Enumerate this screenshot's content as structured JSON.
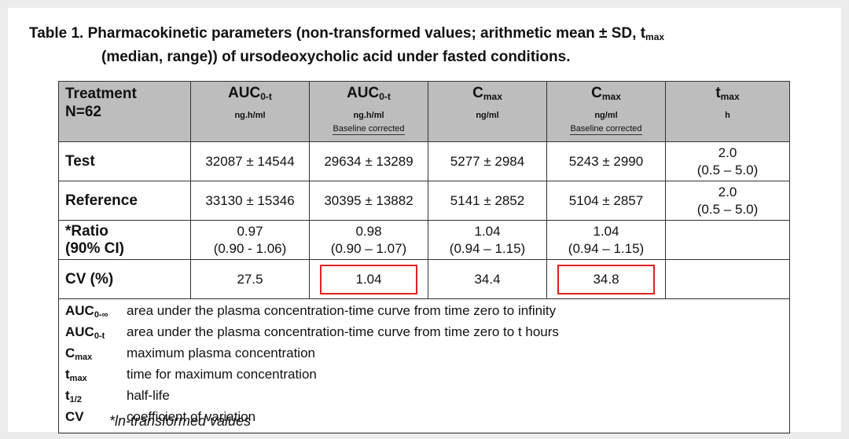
{
  "title": {
    "line1_part1": "Table 1. Pharmacokinetic parameters (non-transformed values; arithmetic mean ± SD, t",
    "line1_sub": "max",
    "line2": "(median, range)) of ursodeoxycholic acid under fasted conditions."
  },
  "header": {
    "treatment_line1": "Treatment",
    "treatment_line2": "N=62",
    "columns": [
      {
        "name": "AUC",
        "sub": "0-t",
        "unit": "ng.h/ml",
        "note": ""
      },
      {
        "name": "AUC",
        "sub": "0-t",
        "unit": "ng.h/ml",
        "note": "Baseline corrected"
      },
      {
        "name": "C",
        "sub": "max",
        "unit": "ng/ml",
        "note": ""
      },
      {
        "name": "C",
        "sub": "max",
        "unit": "ng/ml",
        "note": "Baseline corrected"
      },
      {
        "name": "t",
        "sub": "max",
        "unit": "h",
        "note": ""
      }
    ]
  },
  "rows": {
    "test": {
      "label": "Test",
      "c1": "32087 ± 14544",
      "c2": "29634 ± 13289",
      "c3": "5277 ± 2984",
      "c4": "5243 ± 2990",
      "c5_line1": "2.0",
      "c5_line2": "(0.5 – 5.0)"
    },
    "reference": {
      "label": "Reference",
      "c1": "33130 ± 15346",
      "c2": "30395 ± 13882",
      "c3": "5141 ± 2852",
      "c4": "5104 ± 2857",
      "c5_line1": "2.0",
      "c5_line2": "(0.5 – 5.0)"
    },
    "ratio": {
      "label_line1": "*Ratio",
      "label_line2": "(90% CI)",
      "c1_line1": "0.97",
      "c1_line2": "(0.90 - 1.06)",
      "c2_line1": "0.98",
      "c2_line2": "(0.90 – 1.07)",
      "c3_line1": "1.04",
      "c3_line2": "(0.94 – 1.15)",
      "c4_line1": "1.04",
      "c4_line2": "(0.94 – 1.15)"
    },
    "cv": {
      "label": "CV (%)",
      "c1": "27.5",
      "c2": "1.04",
      "c3": "34.4",
      "c4": "34.8"
    }
  },
  "highlight_color": "#e02020",
  "legend": [
    {
      "abbr": "AUC",
      "sub": "0-∞",
      "desc": "area under the plasma concentration-time curve from time zero to infinity"
    },
    {
      "abbr": "AUC",
      "sub": "0-t",
      "desc": "area under the plasma concentration-time curve from time zero to t hours"
    },
    {
      "abbr": "C",
      "sub": "max",
      "desc": "maximum plasma concentration"
    },
    {
      "abbr": "t",
      "sub": "max",
      "desc": "time for maximum concentration"
    },
    {
      "abbr": "t",
      "sub": "1/2",
      "desc": "half-life"
    },
    {
      "abbr": "CV",
      "sub": "",
      "desc": "coefficient of variation"
    }
  ],
  "footnote": "*ln-transformed values"
}
